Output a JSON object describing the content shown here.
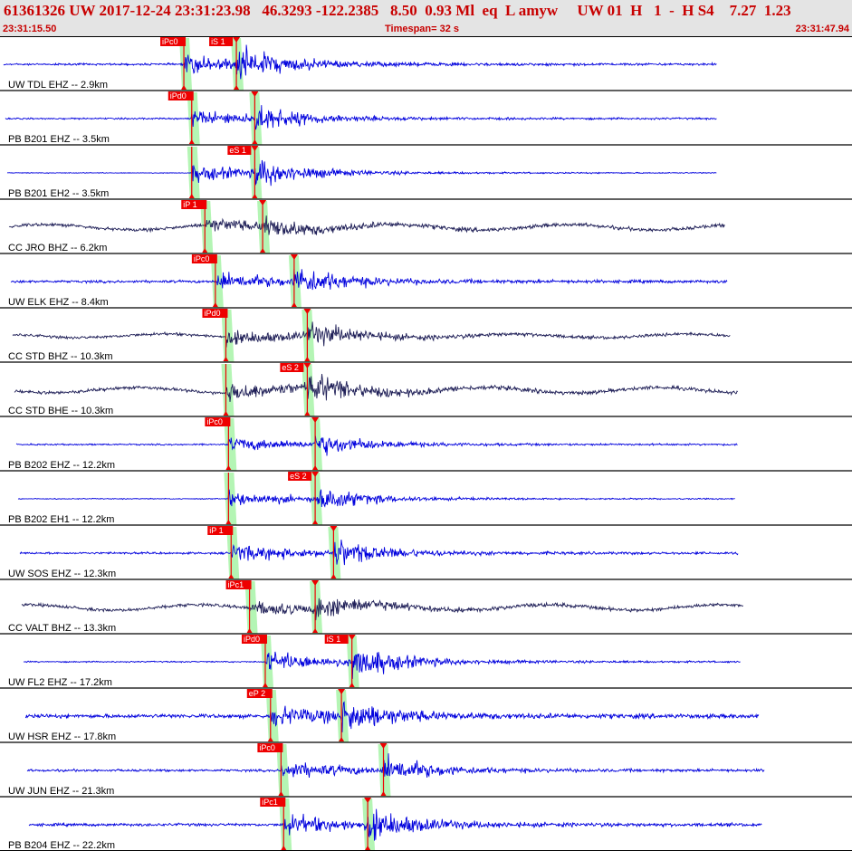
{
  "header": {
    "title": "61361326 UW 2017-12-24 23:31:23.98   46.3293 -122.2385   8.50  0.93 Ml  eq  L amyw     UW 01  H   1  -  H S4    7.27  1.23",
    "start_time": "23:31:15.50",
    "end_time": "23:31:47.94",
    "timespan": "Timespan=  32 s"
  },
  "colors": {
    "trace_blue": "#0000dd",
    "trace_dark": "#202058",
    "pick_red": "#ee0000",
    "pick_window": "#b4f5b4",
    "separator": "#000000"
  },
  "timespan_seconds": 32.44,
  "channels": [
    {
      "label": "UW TDL EHZ -- 2.9km",
      "color": "blue",
      "p_time": 7.0,
      "s_time": 9.0,
      "p_label": "iPc0",
      "s_label": "iS 1",
      "amp": 22,
      "noise": 1.5,
      "swell": 0,
      "end": 27.3
    },
    {
      "label": "PB B201 EHZ -- 3.5km",
      "color": "blue",
      "p_time": 7.3,
      "s_time": 9.7,
      "p_label": "iPd0",
      "s_label": "",
      "amp": 18,
      "noise": 1.2,
      "swell": 0,
      "end": 27.3
    },
    {
      "label": "PB B201 EH2 -- 3.5km",
      "color": "blue",
      "p_time": 7.3,
      "s_time": 9.7,
      "p_label": "",
      "s_label": "eS 1",
      "amp": 20,
      "noise": 0.6,
      "swell": 0,
      "end": 27.3
    },
    {
      "label": "CC JRO BHZ -- 6.2km",
      "color": "dark",
      "p_time": 7.8,
      "s_time": 10.0,
      "p_label": "iP 1",
      "s_label": "",
      "amp": 14,
      "noise": 2.5,
      "swell": 3,
      "end": 27.6
    },
    {
      "label": "UW ELK EHZ -- 8.4km",
      "color": "blue",
      "p_time": 8.2,
      "s_time": 11.2,
      "p_label": "iPc0",
      "s_label": "",
      "amp": 20,
      "noise": 2.0,
      "swell": 0,
      "end": 27.7
    },
    {
      "label": "CC STD BHZ -- 10.3km",
      "color": "dark",
      "p_time": 8.6,
      "s_time": 11.7,
      "p_label": "iPd0",
      "s_label": "",
      "amp": 16,
      "noise": 2.2,
      "swell": 2,
      "end": 27.8
    },
    {
      "label": "CC STD BHE -- 10.3km",
      "color": "dark",
      "p_time": 8.6,
      "s_time": 11.7,
      "p_label": "",
      "s_label": "eS 2",
      "amp": 20,
      "noise": 2.5,
      "swell": 3,
      "end": 28.1
    },
    {
      "label": "PB B202 EHZ -- 12.2km",
      "color": "blue",
      "p_time": 8.7,
      "s_time": 12.0,
      "p_label": "iPc0",
      "s_label": "",
      "amp": 16,
      "noise": 1.2,
      "swell": 0,
      "end": 28.1
    },
    {
      "label": "PB B202 EH1 -- 12.2km",
      "color": "blue",
      "p_time": 8.7,
      "s_time": 12.0,
      "p_label": "",
      "s_label": "eS 2",
      "amp": 18,
      "noise": 0.7,
      "swell": 0,
      "end": 28.0
    },
    {
      "label": "UW SOS EHZ -- 12.3km",
      "color": "blue",
      "p_time": 8.8,
      "s_time": 12.7,
      "p_label": "iP 1",
      "s_label": "",
      "amp": 20,
      "noise": 1.6,
      "swell": 0,
      "end": 28.1
    },
    {
      "label": "CC VALT BHZ -- 13.3km",
      "color": "dark",
      "p_time": 9.5,
      "s_time": 12.0,
      "p_label": "iPc1",
      "s_label": "",
      "amp": 16,
      "noise": 2.4,
      "swell": 3,
      "end": 28.3
    },
    {
      "label": "UW FL2 EHZ -- 17.2km",
      "color": "blue",
      "p_time": 10.1,
      "s_time": 13.4,
      "p_label": "iPd0",
      "s_label": "iS 1",
      "amp": 24,
      "noise": 1.0,
      "swell": 0,
      "end": 28.2
    },
    {
      "label": "UW HSR EHZ -- 17.8km",
      "color": "blue",
      "p_time": 10.3,
      "s_time": 13.0,
      "p_label": "eP 2",
      "s_label": "",
      "amp": 22,
      "noise": 3.0,
      "swell": 0,
      "end": 28.9
    },
    {
      "label": "UW JUN EHZ -- 21.3km",
      "color": "blue",
      "p_time": 10.7,
      "s_time": 14.6,
      "p_label": "iPc0",
      "s_label": "",
      "amp": 20,
      "noise": 1.8,
      "swell": 0,
      "end": 29.1
    },
    {
      "label": "PB B204 EHZ -- 22.2km",
      "color": "blue",
      "p_time": 10.8,
      "s_time": 14.0,
      "p_label": "iPc1",
      "s_label": "",
      "amp": 22,
      "noise": 2.2,
      "swell": 0,
      "end": 29.0
    }
  ]
}
